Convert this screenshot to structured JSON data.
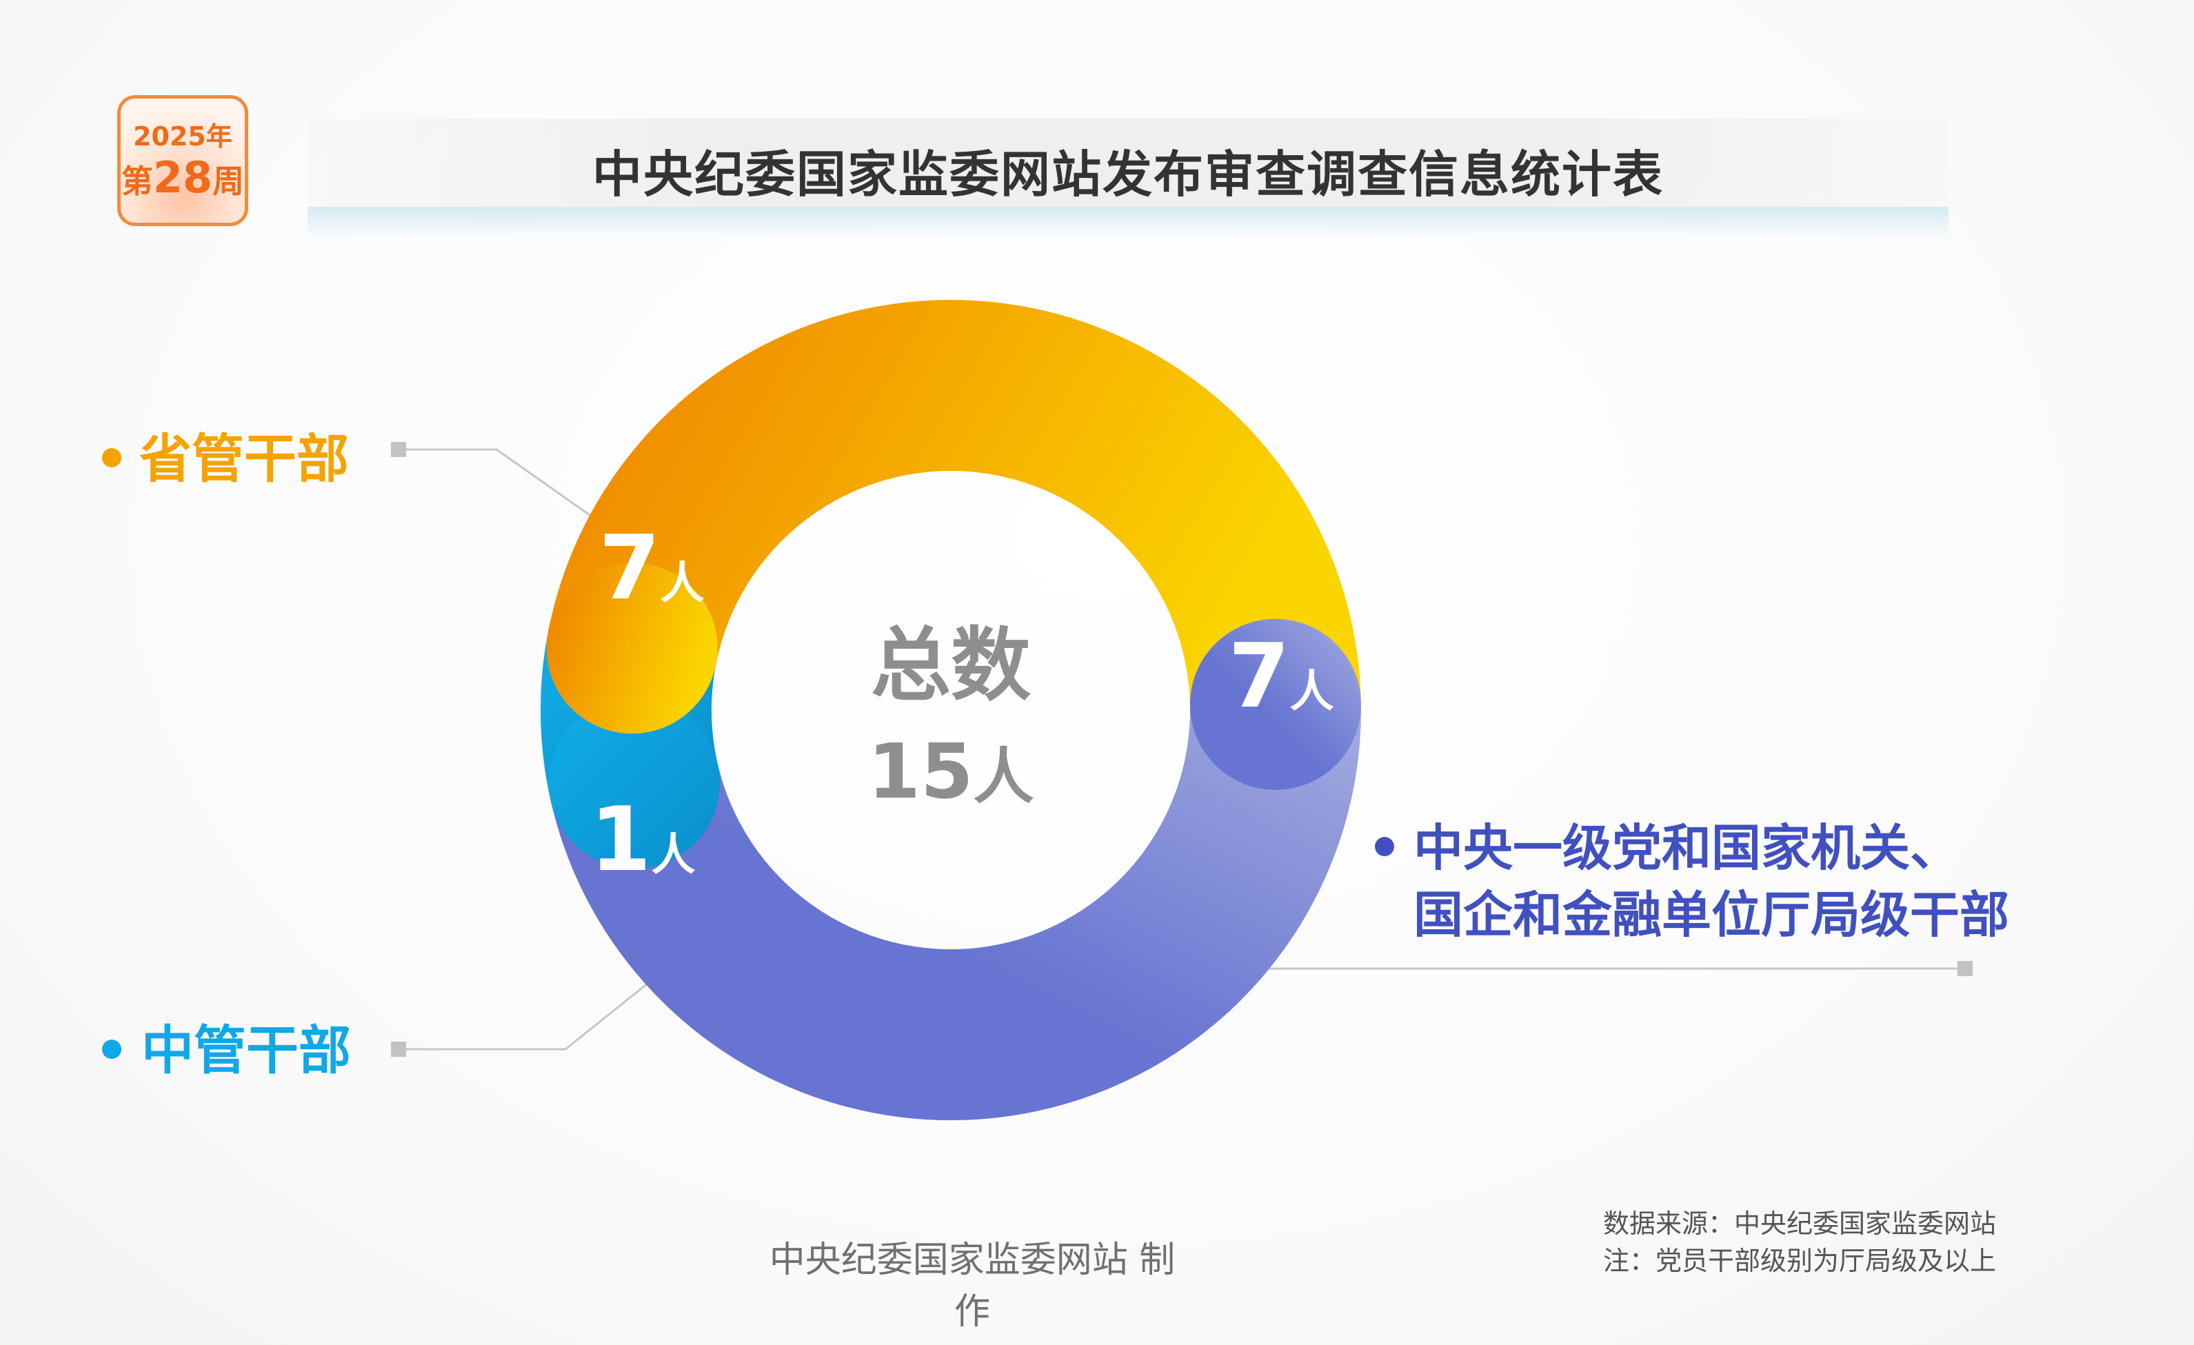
{
  "week_badge": {
    "year": "2025年",
    "week_prefix": "第",
    "week_number": "28",
    "week_suffix": "周"
  },
  "title": "中央纪委国家监委网站发布审查调查信息统计表",
  "chart_data": {
    "type": "pie",
    "title": "中央纪委国家监委网站发布审查调查信息统计表",
    "donut": true,
    "center_label": {
      "line1": "总数",
      "total": "15",
      "unit": "人"
    },
    "unit": "人",
    "slices": [
      {
        "name": "省管干部",
        "value": 7,
        "color_start": "#ee7f00",
        "color_end": "#fbd500",
        "legend_color": "#f5a300"
      },
      {
        "name": "中央一级党和国家机关、国企和金融单位厅局级干部",
        "name_lines": [
          "中央一级党和国家机关、",
          "国企和金融单位厅局级干部"
        ],
        "value": 7,
        "color_start": "#6774d2",
        "color_end": "#a3acdf",
        "legend_color": "#4150c0"
      },
      {
        "name": "中管干部",
        "value": 1,
        "color_start": "#11aee8",
        "color_end": "#0a8fcb",
        "legend_color": "#10a8e6"
      }
    ]
  },
  "footer": {
    "made_by": "中央纪委国家监委网站 制作",
    "source": "数据来源：中央纪委国家监委网站",
    "note": "注：党员干部级别为厅局级及以上"
  }
}
